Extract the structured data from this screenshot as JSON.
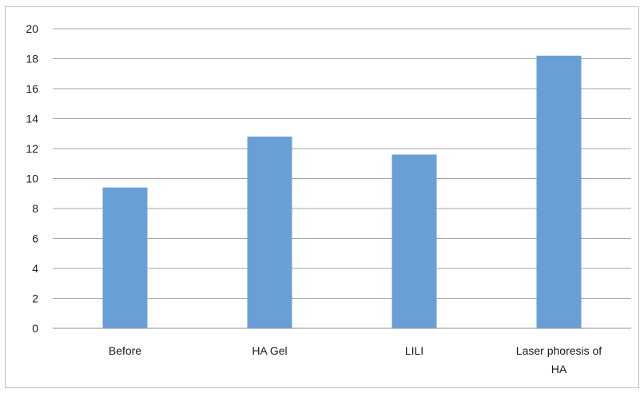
{
  "chart_data": {
    "type": "bar",
    "categories": [
      "Before",
      "HA Gel",
      "LILI",
      "Laser phoresis of HA"
    ],
    "values": [
      9.4,
      12.8,
      11.6,
      18.2
    ],
    "title": "",
    "xlabel": "",
    "ylabel": "",
    "ylim": [
      0,
      20
    ],
    "yticks": [
      0,
      2,
      4,
      6,
      8,
      10,
      12,
      14,
      16,
      18,
      20
    ],
    "grid": true,
    "legend": "none",
    "bar_color": "#6a9fd6",
    "grid_color": "#a6a6a6"
  }
}
